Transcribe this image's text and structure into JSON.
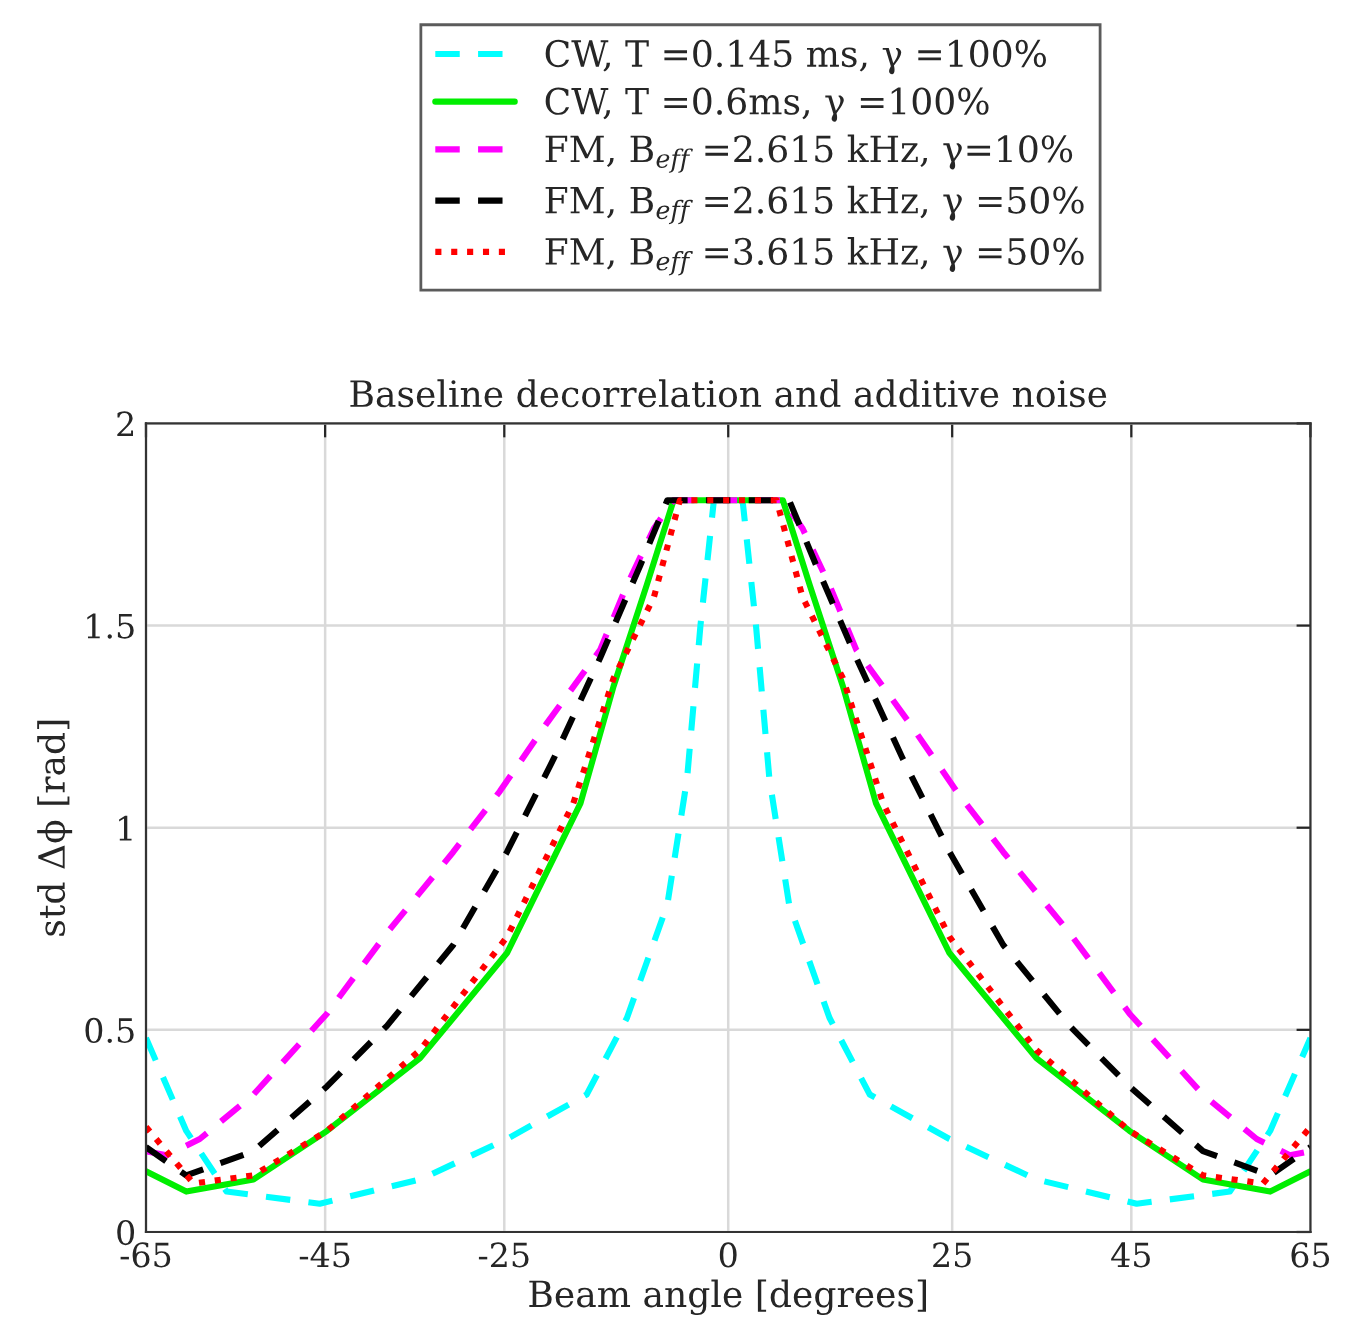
{
  "chart_data": {
    "type": "line",
    "title": "Baseline decorrelation and additive noise",
    "xlabel": "Beam angle [degrees]",
    "ylabel": "std Δϕ [rad]",
    "xlim": [
      -65,
      65
    ],
    "ylim": [
      0,
      2
    ],
    "xticks": [
      -65,
      -45,
      -25,
      0,
      25,
      45,
      65
    ],
    "yticks": [
      0,
      0.5,
      1,
      1.5,
      2
    ],
    "grid": true,
    "legend": "top",
    "marker": "none",
    "series": [
      {
        "name": "CW, T =0.145 ms, γ =100%",
        "color": "#00ffff",
        "line_style": "dashed",
        "x": [
          -65,
          -60.5,
          -56,
          -45.6,
          -34.4,
          -24.7,
          -15.8,
          -11.3,
          -6.8,
          -4.6,
          -3.1,
          -1.6,
          0,
          1.6,
          3.1,
          4.6,
          6.8,
          11.3,
          15.8,
          24.7,
          34.4,
          45.6,
          56,
          60.5,
          65
        ],
        "values": [
          0.48,
          0.25,
          0.1,
          0.07,
          0.13,
          0.23,
          0.34,
          0.53,
          0.81,
          1.12,
          1.5,
          1.81,
          1.81,
          1.81,
          1.5,
          1.12,
          0.81,
          0.53,
          0.34,
          0.23,
          0.13,
          0.07,
          0.1,
          0.25,
          0.48
        ]
      },
      {
        "name": "CW, T =0.6ms, γ =100%",
        "color": "#00ee00",
        "line_style": "solid",
        "x": [
          -65,
          -60.5,
          -53,
          -44.8,
          -34.4,
          -24.7,
          -16.5,
          -12.8,
          -9.1,
          -6.1,
          0,
          6.1,
          9.1,
          12.8,
          16.5,
          24.7,
          34.4,
          44.8,
          53,
          60.5,
          65
        ],
        "values": [
          0.15,
          0.1,
          0.13,
          0.25,
          0.43,
          0.69,
          1.06,
          1.35,
          1.6,
          1.81,
          1.81,
          1.81,
          1.6,
          1.35,
          1.06,
          0.69,
          0.43,
          0.25,
          0.13,
          0.1,
          0.15
        ]
      },
      {
        "name": "FM, B$_{eff}$ =2.615 kHz, γ=10%",
        "color": "#ff00ff",
        "line_style": "dashed",
        "x": [
          -65,
          -62.7,
          -59,
          -53,
          -44.8,
          -38.1,
          -30.7,
          -25.5,
          -20.2,
          -14.3,
          -11.3,
          -8.3,
          -6.1,
          0,
          6.1,
          8.3,
          11.3,
          14.3,
          20.2,
          25.5,
          30.7,
          38.1,
          44.8,
          53,
          59,
          62.7,
          65
        ],
        "values": [
          0.2,
          0.19,
          0.23,
          0.34,
          0.54,
          0.74,
          0.94,
          1.09,
          1.26,
          1.44,
          1.6,
          1.74,
          1.81,
          1.81,
          1.81,
          1.74,
          1.6,
          1.44,
          1.26,
          1.09,
          0.94,
          0.74,
          0.54,
          0.34,
          0.23,
          0.19,
          0.2
        ]
      },
      {
        "name": "FM, B$_{eff}$ =2.615 kHz, γ =50%",
        "color": "#000000",
        "line_style": "dashed",
        "x": [
          -65,
          -60.5,
          -53,
          -44.8,
          -38.1,
          -30.7,
          -24.7,
          -19.5,
          -14.3,
          -9.8,
          -6.8,
          0,
          6.8,
          9.8,
          14.3,
          19.5,
          24.7,
          30.7,
          38.1,
          44.8,
          53,
          60.5,
          65
        ],
        "values": [
          0.21,
          0.14,
          0.2,
          0.36,
          0.51,
          0.71,
          0.94,
          1.17,
          1.42,
          1.65,
          1.81,
          1.81,
          1.81,
          1.65,
          1.42,
          1.17,
          0.94,
          0.71,
          0.51,
          0.36,
          0.2,
          0.14,
          0.21
        ]
      },
      {
        "name": "FM, B$_{eff}$ =3.615 kHz, γ =50%",
        "color": "#ff0000",
        "line_style": "dotted",
        "x": [
          -65,
          -59.7,
          -53,
          -44.8,
          -34.4,
          -24.7,
          -17.3,
          -12.8,
          -8.3,
          -5.4,
          0,
          5.4,
          8.3,
          12.8,
          17.3,
          24.7,
          34.4,
          44.8,
          53,
          59.7,
          65
        ],
        "values": [
          0.26,
          0.12,
          0.14,
          0.25,
          0.45,
          0.73,
          1.06,
          1.37,
          1.57,
          1.81,
          1.81,
          1.81,
          1.57,
          1.37,
          1.06,
          0.73,
          0.45,
          0.25,
          0.14,
          0.12,
          0.26
        ]
      }
    ]
  }
}
